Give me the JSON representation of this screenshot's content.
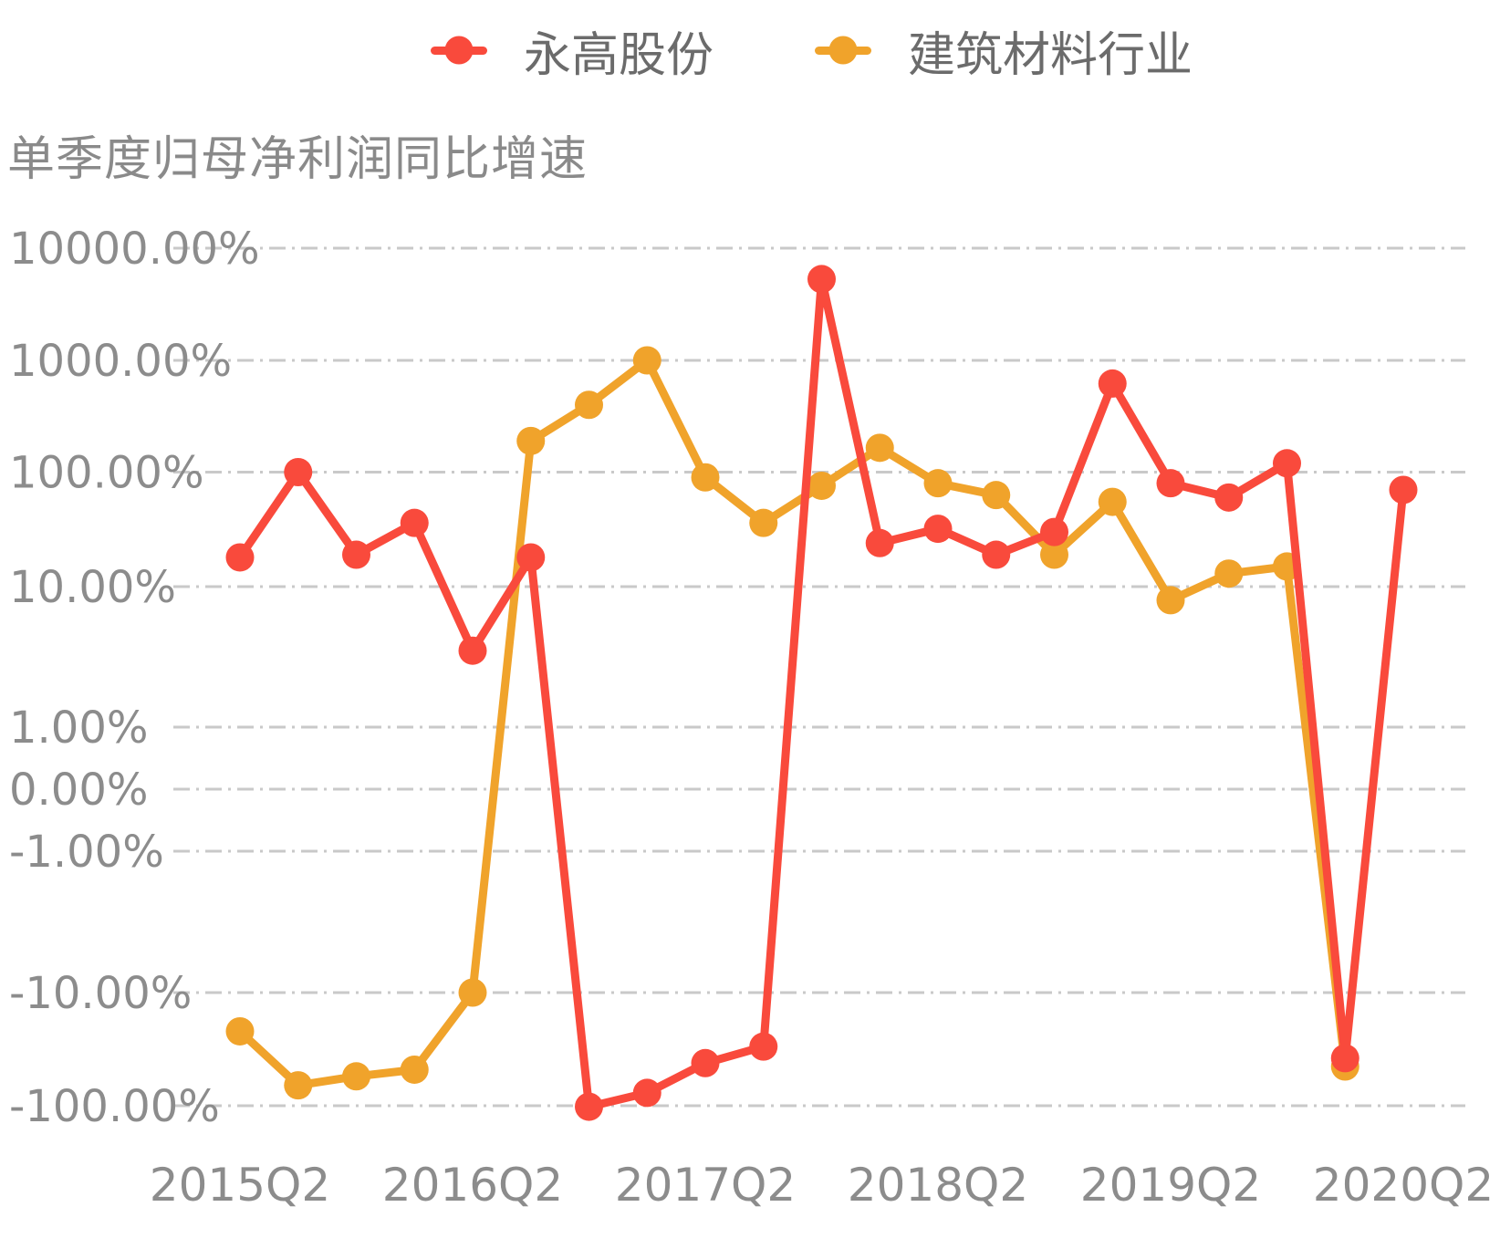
{
  "legend": {
    "items": [
      {
        "label": "永高股份",
        "color": "#F94A3C"
      },
      {
        "label": "建筑材料行业",
        "color": "#F0A32B"
      }
    ]
  },
  "chart_data": {
    "type": "line",
    "title": "单季度归母净利润同比增速",
    "categories": [
      "2015Q2",
      "2015Q3",
      "2015Q4",
      "2016Q1",
      "2016Q2",
      "2016Q3",
      "2016Q4",
      "2017Q1",
      "2017Q2",
      "2017Q3",
      "2017Q4",
      "2018Q1",
      "2018Q2",
      "2018Q3",
      "2018Q4",
      "2019Q1",
      "2019Q2",
      "2019Q3",
      "2019Q4",
      "2020Q1",
      "2020Q2"
    ],
    "x_tick_labels": [
      "2015Q2",
      "2016Q2",
      "2017Q2",
      "2018Q2",
      "2019Q2",
      "2020Q2"
    ],
    "series": [
      {
        "name": "永高股份",
        "color": "#F94A3C",
        "values": [
          18,
          100,
          19,
          36,
          3.5,
          18,
          -102,
          -77,
          -42,
          -30,
          5300,
          24,
          32,
          19,
          30,
          620,
          80,
          60,
          120,
          -38,
          70
        ]
      },
      {
        "name": "建筑材料行业",
        "color": "#F0A32B",
        "values": [
          -22,
          -66,
          -55,
          -48,
          -10,
          190,
          400,
          1000,
          90,
          36,
          76,
          165,
          80,
          63,
          19,
          55,
          8,
          13,
          15,
          -45,
          null
        ]
      }
    ],
    "y_axis": {
      "scale": "symlog",
      "unit": "%",
      "tick_labels": [
        "10000.00%",
        "1000.00%",
        "100.00%",
        "10.00%",
        "1.00%",
        "0.00%",
        "-1.00%",
        "-10.00%",
        "-100.00%"
      ],
      "tick_values": [
        10000,
        1000,
        100,
        10,
        1,
        0,
        -1,
        -10,
        -100
      ]
    },
    "ylim": [
      -100,
      10000
    ],
    "grid": true,
    "legend_position": "top"
  },
  "colors": {
    "axis_text": "#8C8C8C",
    "title_text": "#8A8A8A",
    "legend_text": "#6B6B6B",
    "gridline": "#C9C9C9",
    "background": "#FFFFFF"
  }
}
